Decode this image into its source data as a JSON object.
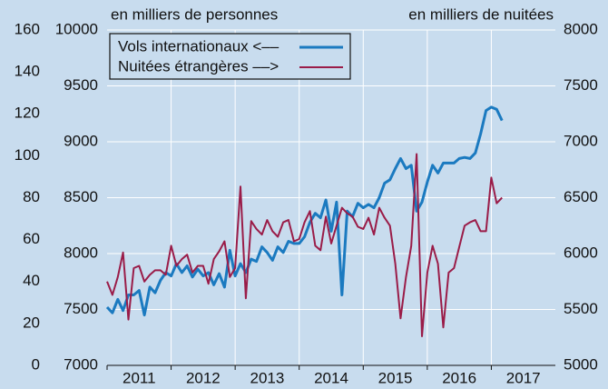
{
  "chart_data": {
    "type": "line",
    "y_label": "en milliers de personnes",
    "y2_label": "en milliers de nuitées",
    "xlim": [
      2011,
      2018
    ],
    "xticks": [
      2011,
      2012,
      2013,
      2014,
      2015,
      2016,
      2017
    ],
    "ylim": [
      7000,
      10000
    ],
    "yticks": [
      7000,
      7500,
      8000,
      8500,
      9000,
      9500,
      10000
    ],
    "y2lim": [
      5000,
      8000
    ],
    "y2ticks": [
      5000,
      5500,
      6000,
      6500,
      7000,
      7500,
      8000
    ],
    "y3lim": [
      0,
      160
    ],
    "y3ticks": [
      0,
      20,
      40,
      60,
      80,
      100,
      120,
      140,
      160
    ],
    "grid": true,
    "legend": "top-left",
    "x": [
      2011,
      2011.083,
      2011.167,
      2011.25,
      2011.333,
      2011.417,
      2011.5,
      2011.583,
      2011.667,
      2011.75,
      2011.833,
      2011.917,
      2012,
      2012.083,
      2012.167,
      2012.25,
      2012.333,
      2012.417,
      2012.5,
      2012.583,
      2012.667,
      2012.75,
      2012.833,
      2012.917,
      2013,
      2013.083,
      2013.167,
      2013.25,
      2013.333,
      2013.417,
      2013.5,
      2013.583,
      2013.667,
      2013.75,
      2013.833,
      2013.917,
      2014,
      2014.083,
      2014.167,
      2014.25,
      2014.333,
      2014.417,
      2014.5,
      2014.583,
      2014.667,
      2014.75,
      2014.833,
      2014.917,
      2015,
      2015.083,
      2015.167,
      2015.25,
      2015.333,
      2015.417,
      2015.5,
      2015.583,
      2015.667,
      2015.75,
      2015.833,
      2015.917,
      2016,
      2016.083,
      2016.167,
      2016.25,
      2016.333,
      2016.417,
      2016.5,
      2016.583,
      2016.667,
      2016.75,
      2016.833,
      2016.917,
      2017,
      2017.083,
      2017.167
    ],
    "series": [
      {
        "name": "Vols internationaux <––",
        "color": "#1b7ac0",
        "axis": "y",
        "values": [
          7520,
          7470,
          7590,
          7490,
          7630,
          7630,
          7670,
          7450,
          7700,
          7650,
          7760,
          7830,
          7800,
          7910,
          7830,
          7890,
          7790,
          7860,
          7800,
          7830,
          7720,
          7820,
          7700,
          8030,
          7800,
          7910,
          7830,
          7950,
          7930,
          8060,
          8010,
          7940,
          8060,
          8010,
          8110,
          8090,
          8090,
          8150,
          8280,
          8360,
          8320,
          8480,
          8200,
          8460,
          7630,
          8380,
          8330,
          8450,
          8410,
          8440,
          8410,
          8500,
          8630,
          8660,
          8760,
          8850,
          8760,
          8790,
          8380,
          8460,
          8640,
          8790,
          8720,
          8810,
          8810,
          8810,
          8850,
          8860,
          8850,
          8900,
          9070,
          9280,
          9310,
          9290,
          9190
        ]
      },
      {
        "name": "Nuitées étrangères ––>",
        "color": "#9a1c48",
        "axis": "y2",
        "values": [
          5750,
          5630,
          5790,
          6010,
          5410,
          5870,
          5890,
          5750,
          5810,
          5850,
          5850,
          5810,
          6070,
          5890,
          5950,
          5990,
          5830,
          5890,
          5890,
          5730,
          5950,
          6020,
          6110,
          5790,
          5870,
          6600,
          5600,
          6290,
          6220,
          6170,
          6300,
          6200,
          6150,
          6280,
          6300,
          6110,
          6130,
          6280,
          6380,
          6070,
          6030,
          6330,
          6090,
          6250,
          6410,
          6360,
          6330,
          6240,
          6220,
          6320,
          6170,
          6410,
          6320,
          6250,
          5910,
          5420,
          5790,
          6070,
          6890,
          5260,
          5830,
          6070,
          5910,
          5340,
          5830,
          5870,
          6060,
          6250,
          6280,
          6300,
          6200,
          6200,
          6680,
          6450,
          6500
        ]
      }
    ]
  }
}
